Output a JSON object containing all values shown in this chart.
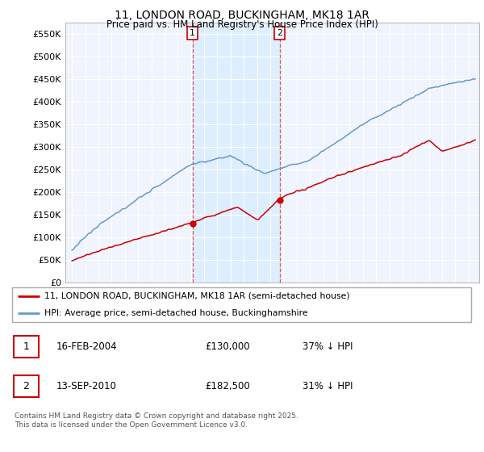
{
  "title": "11, LONDON ROAD, BUCKINGHAM, MK18 1AR",
  "subtitle": "Price paid vs. HM Land Registry's House Price Index (HPI)",
  "legend_line1": "11, LONDON ROAD, BUCKINGHAM, MK18 1AR (semi-detached house)",
  "legend_line2": "HPI: Average price, semi-detached house, Buckinghamshire",
  "footnote": "Contains HM Land Registry data © Crown copyright and database right 2025.\nThis data is licensed under the Open Government Licence v3.0.",
  "transaction1_date": "16-FEB-2004",
  "transaction1_price": "£130,000",
  "transaction1_hpi": "37% ↓ HPI",
  "transaction2_date": "13-SEP-2010",
  "transaction2_price": "£182,500",
  "transaction2_hpi": "31% ↓ HPI",
  "price_color": "#cc0000",
  "hpi_color": "#6699cc",
  "hpi_fill_color": "#ddeeff",
  "background_color": "#f0f4ff",
  "grid_color": "#ffffff",
  "vline_color": "#dd4444",
  "t1_x": 2004.12,
  "t2_x": 2010.71,
  "t1_price": 130000,
  "t2_price": 182500,
  "ylim": [
    0,
    575000
  ],
  "xlim": [
    1994.5,
    2025.8
  ],
  "yticks": [
    0,
    50000,
    100000,
    150000,
    200000,
    250000,
    300000,
    350000,
    400000,
    450000,
    500000,
    550000
  ]
}
